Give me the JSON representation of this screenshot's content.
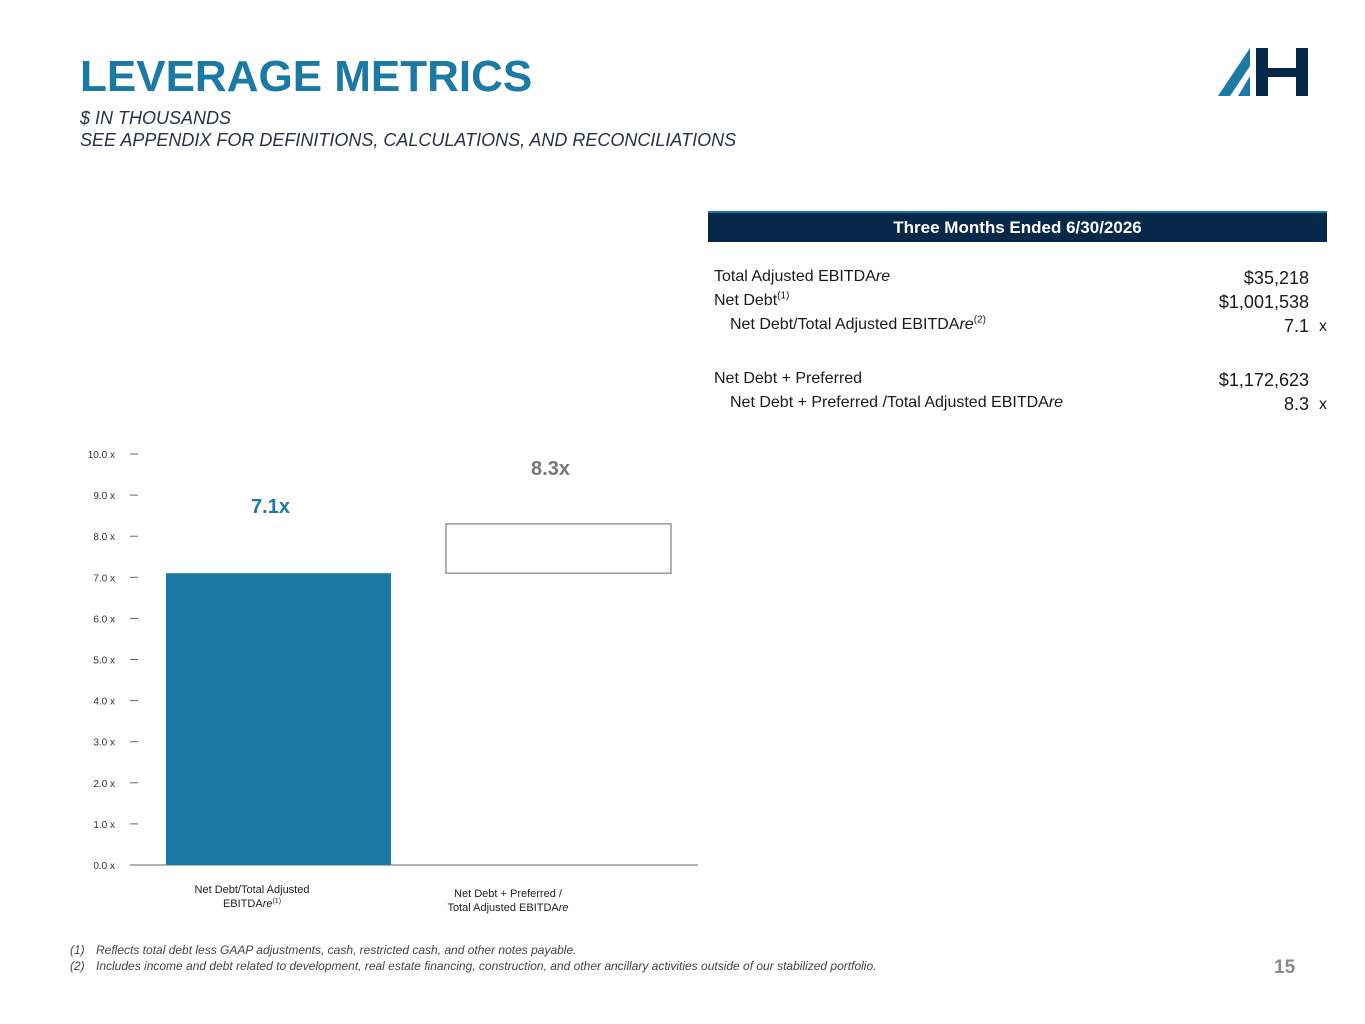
{
  "header": {
    "title": "LEVERAGE METRICS",
    "subtitle_1": "$ IN THOUSANDS",
    "subtitle_2": "SEE APPENDIX FOR DEFINITIONS, CALCULATIONS, AND RECONCILIATIONS",
    "logo_icon": "ah-logo-icon"
  },
  "colors": {
    "title": "#1a79a5",
    "bar": "#1a79a5",
    "table_header_bg": "#06294a",
    "logo_light": "#1a79a5",
    "logo_dark": "#06294a"
  },
  "table": {
    "header": "Three Months Ended 6/30/2026",
    "rows": [
      {
        "label_main": "Total Adjusted EBITDA",
        "label_em": "re",
        "footnote": "",
        "value": "$35,218",
        "suffix": ""
      },
      {
        "label_main": "Net Debt",
        "label_em": "",
        "footnote": "(1)",
        "value": "$1,001,538",
        "suffix": ""
      },
      {
        "label_main": "Net Debt/Total Adjusted EBITDA",
        "label_em": "re",
        "footnote": "(2)",
        "value": "7.1",
        "suffix": "x"
      },
      {
        "label_main": "Net Debt + Preferred",
        "label_em": "",
        "footnote": "",
        "value": "$1,172,623",
        "suffix": ""
      },
      {
        "label_main": "Net Debt + Preferred /Total Adjusted EBITDA",
        "label_em": "re",
        "footnote": "",
        "value": "8.3",
        "suffix": "x"
      }
    ]
  },
  "chart_data": {
    "type": "bar",
    "categories": [
      {
        "line1": "Net Debt/Total Adjusted",
        "line2_main": "EBITDA",
        "line2_em": "re",
        "line2_footnote": "(1)"
      },
      {
        "line1": "Net Debt + Preferred /",
        "line2_main": "Total Adjusted EBITDA",
        "line2_em": "re",
        "line2_footnote": ""
      }
    ],
    "series": [
      {
        "values": [
          7.1,
          7.1
        ],
        "style": [
          "filled",
          "invisible-base"
        ]
      },
      {
        "values": [
          0,
          1.2
        ],
        "style": [
          "none",
          "outline"
        ]
      }
    ],
    "totals": [
      7.1,
      8.3
    ],
    "data_labels": [
      "7.1x",
      "8.3x"
    ],
    "ylim": [
      0,
      10
    ],
    "yticks": [
      0,
      1,
      2,
      3,
      4,
      5,
      6,
      7,
      8,
      9,
      10
    ],
    "ytick_labels": [
      "0.0 x",
      "1.0 x",
      "2.0 x",
      "3.0 x",
      "4.0 x",
      "5.0 x",
      "6.0 x",
      "7.0 x",
      "8.0 x",
      "9.0 x",
      "10.0 x"
    ],
    "title": "",
    "xlabel": "",
    "ylabel": "",
    "grid": false,
    "legend": "none"
  },
  "footnotes": [
    {
      "num": "(1)",
      "text": "Reflects total debt less GAAP adjustments, cash, restricted cash, and other notes payable."
    },
    {
      "num": "(2)",
      "text": "Includes income and debt related to development, real estate financing, construction, and other ancillary activities outside of our stabilized portfolio."
    }
  ],
  "page_number": "15"
}
